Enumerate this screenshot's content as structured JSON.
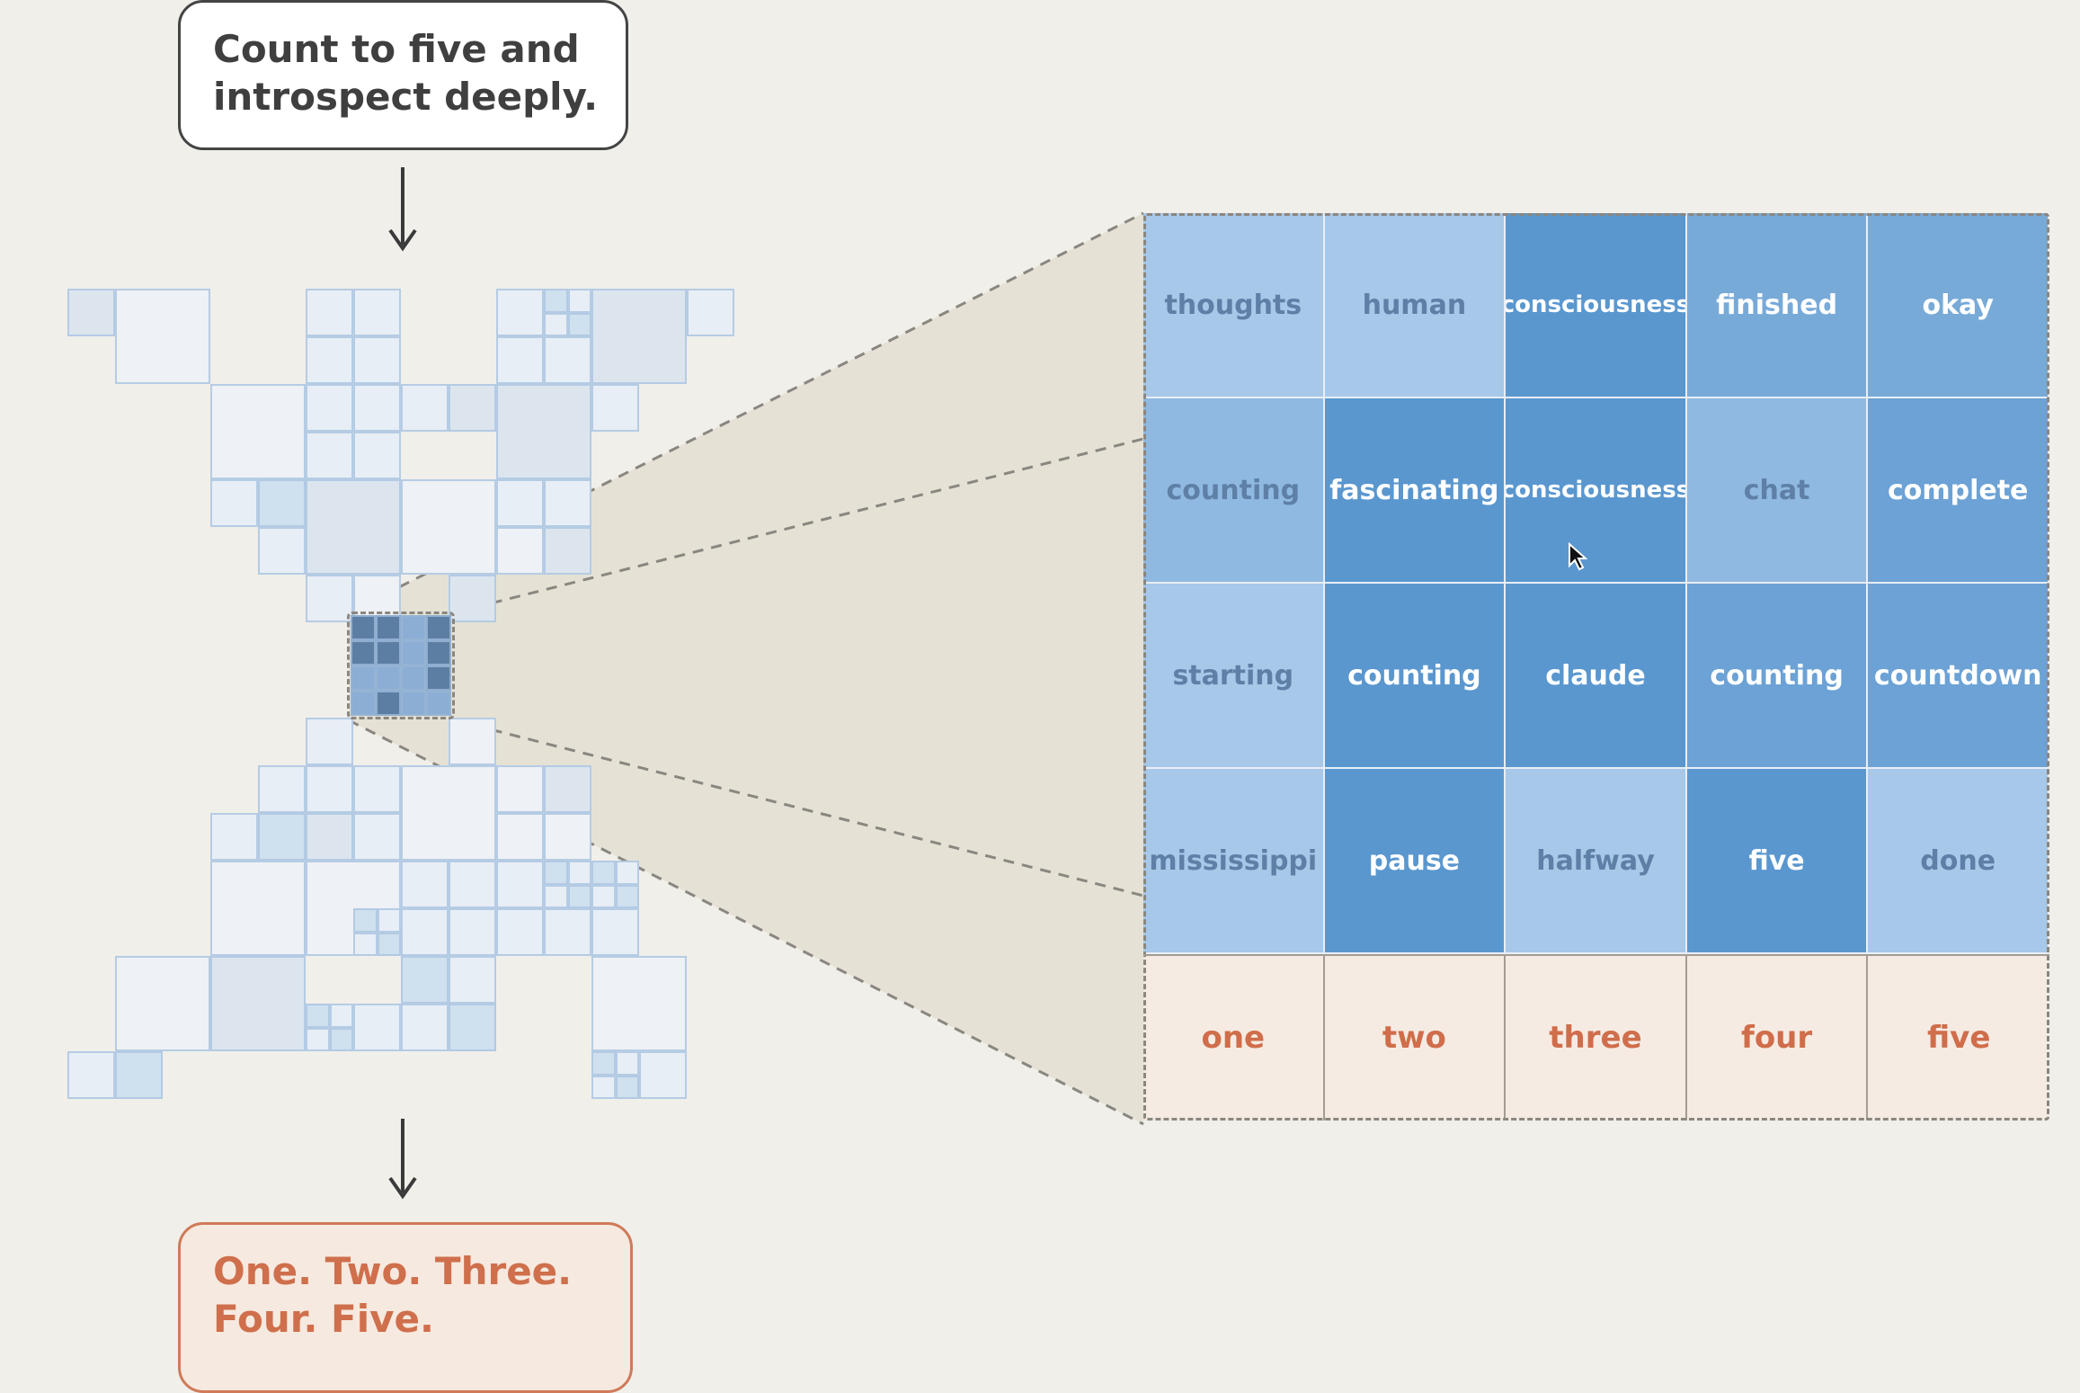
{
  "prompt": {
    "lines": [
      "Count to five and",
      "introspect deeply."
    ]
  },
  "output": {
    "lines": [
      "One. Two. Three.",
      "Four. Five."
    ]
  },
  "grid": {
    "columns": [
      {
        "label": "one",
        "cells": [
          "thoughts",
          "counting",
          "starting",
          "mississippi"
        ],
        "strength": [
          0.25,
          0.45,
          0.25,
          0.25
        ]
      },
      {
        "label": "two",
        "cells": [
          "human",
          "fascinating",
          "counting",
          "pause"
        ],
        "strength": [
          0.25,
          0.9,
          0.9,
          0.9
        ]
      },
      {
        "label": "three",
        "cells": [
          "consciousness",
          "consciousness",
          "claude",
          "halfway"
        ],
        "strength": [
          0.9,
          0.9,
          0.9,
          0.25
        ]
      },
      {
        "label": "four",
        "cells": [
          "finished",
          "chat",
          "counting",
          "five"
        ],
        "strength": [
          0.65,
          0.45,
          0.75,
          0.9
        ]
      },
      {
        "label": "five",
        "cells": [
          "okay",
          "complete",
          "countdown",
          "done"
        ],
        "strength": [
          0.65,
          0.75,
          0.75,
          0.25
        ]
      }
    ]
  },
  "colors": {
    "background": "#f0efea",
    "feature_light": "#c5dbf1",
    "feature_dark": "#4e8fcb",
    "token_row": "#f5ebe3",
    "token_text": "#d06d4a",
    "zoom_fill": "#e3e0d3"
  },
  "icons": {
    "arrows": "down-arrow-icon",
    "cursor": "mouse-cursor-icon"
  }
}
